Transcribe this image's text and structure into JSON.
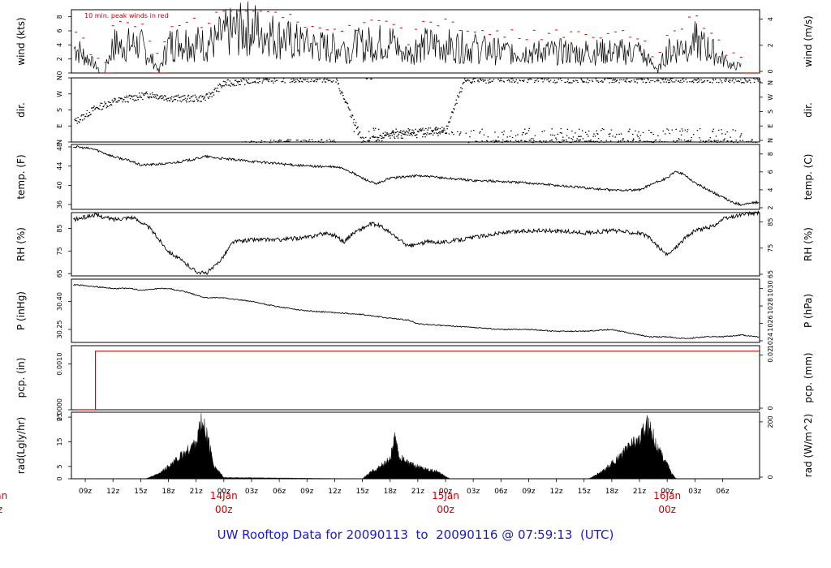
{
  "title_parts": [
    "UW Rooftop Data for 20090113",
    "to",
    "20090116 @ 07:59:13",
    "(UTC)"
  ],
  "legend_note": "10 min. peak winds in red",
  "colors": {
    "trace": "#000000",
    "peak": "#dd0000",
    "title": "#1a1ad6",
    "date_label": "#cc0000"
  },
  "x_ticks": [
    "09z",
    "12z",
    "15z",
    "18z",
    "21z",
    "00z",
    "03z",
    "06z",
    "09z",
    "12z",
    "15z",
    "18z",
    "21z",
    "00z",
    "03z",
    "06z",
    "09z",
    "12z",
    "15z",
    "18z",
    "21z",
    "00z",
    "03z",
    "06z"
  ],
  "date_labels": [
    {
      "line1": "Jan",
      "line2": "z"
    },
    {
      "line1": "14Jan",
      "line2": "00z"
    },
    {
      "line1": "15Jan",
      "line2": "00z"
    },
    {
      "line1": "16Jan",
      "line2": "00z"
    }
  ],
  "chart_data": [
    {
      "name": "wind",
      "type": "line",
      "ylabel_left": "wind (kts)",
      "ylabel_right": "wind (m/s)",
      "left_ticks": [
        "0",
        "2",
        "4",
        "6",
        "8"
      ],
      "right_ticks": [
        "0",
        "2",
        "4"
      ],
      "ylim": [
        0,
        9
      ],
      "series": [
        {
          "name": "10 min. peak winds in red",
          "style": "peak"
        }
      ],
      "approx_mean_kts": [
        [
          8,
          3.5
        ],
        [
          11,
          0
        ],
        [
          12,
          4
        ],
        [
          15,
          4
        ],
        [
          17,
          0.5
        ],
        [
          18,
          4
        ],
        [
          20,
          4.5
        ],
        [
          22,
          4
        ],
        [
          23,
          4.5
        ],
        [
          24,
          5.5
        ],
        [
          27,
          6.5
        ],
        [
          30,
          5
        ],
        [
          33,
          4
        ],
        [
          36,
          3.5
        ],
        [
          39,
          4
        ],
        [
          42,
          4.5
        ],
        [
          44,
          2.5
        ],
        [
          45,
          4
        ],
        [
          48,
          4
        ],
        [
          51,
          3.5
        ],
        [
          54,
          3
        ],
        [
          57,
          3
        ],
        [
          60,
          3
        ],
        [
          63,
          3
        ],
        [
          66,
          3
        ],
        [
          69,
          3
        ],
        [
          71,
          0.5
        ],
        [
          72,
          3
        ],
        [
          75,
          4.5
        ],
        [
          77,
          3
        ],
        [
          79,
          1
        ]
      ]
    },
    {
      "name": "dir",
      "type": "scatter",
      "ylabel_left": "dir.",
      "ylabel_right": "dir.",
      "left_ticks": [
        "N",
        "E",
        "S",
        "W",
        "N"
      ],
      "right_ticks": [
        "N",
        "E",
        "S",
        "W",
        "N"
      ],
      "ylim": [
        0,
        360
      ],
      "approx_direction_deg": [
        [
          8,
          120
        ],
        [
          10,
          190
        ],
        [
          12,
          230
        ],
        [
          14,
          250
        ],
        [
          16,
          270
        ],
        [
          18,
          250
        ],
        [
          20,
          245
        ],
        [
          22,
          250
        ],
        [
          24,
          330
        ],
        [
          27,
          350
        ],
        [
          30,
          355
        ],
        [
          33,
          358
        ],
        [
          36,
          358
        ],
        [
          39,
          5
        ],
        [
          42,
          40
        ],
        [
          45,
          60
        ],
        [
          48,
          70
        ],
        [
          50,
          350
        ],
        [
          54,
          355
        ],
        [
          60,
          355
        ],
        [
          66,
          355
        ],
        [
          72,
          355
        ],
        [
          76,
          355
        ],
        [
          79,
          355
        ]
      ]
    },
    {
      "name": "temp",
      "type": "line",
      "ylabel_left": "temp. (F)",
      "ylabel_right": "temp. (C)",
      "left_ticks": [
        "36",
        "40",
        "44",
        "48"
      ],
      "right_ticks": [
        "2",
        "4",
        "6",
        "8"
      ],
      "ylim": [
        35,
        48.5
      ],
      "values": [
        [
          8,
          48.0
        ],
        [
          10,
          47.5
        ],
        [
          12,
          46.0
        ],
        [
          14,
          45.0
        ],
        [
          15,
          44.2
        ],
        [
          18,
          44.5
        ],
        [
          21,
          45.5
        ],
        [
          22,
          46.0
        ],
        [
          24,
          45.5
        ],
        [
          27,
          45.0
        ],
        [
          30,
          44.5
        ],
        [
          33,
          44.0
        ],
        [
          36,
          43.8
        ],
        [
          37,
          43.5
        ],
        [
          39,
          41.5
        ],
        [
          40.5,
          40.2
        ],
        [
          42,
          41.5
        ],
        [
          45,
          42.0
        ],
        [
          48,
          41.5
        ],
        [
          51,
          41.0
        ],
        [
          54,
          40.8
        ],
        [
          57,
          40.5
        ],
        [
          60,
          40.0
        ],
        [
          63,
          39.5
        ],
        [
          66,
          39.0
        ],
        [
          69,
          39.0
        ],
        [
          70,
          40.0
        ],
        [
          72,
          41.5
        ],
        [
          73,
          43.0
        ],
        [
          74,
          42.0
        ],
        [
          75,
          40.5
        ],
        [
          77,
          38.5
        ],
        [
          78,
          37.5
        ],
        [
          79,
          36.5
        ],
        [
          80,
          36.0
        ],
        [
          82,
          36.5
        ]
      ]
    },
    {
      "name": "rh",
      "type": "line",
      "ylabel_left": "RH (%)",
      "ylabel_right": "RH (%)",
      "left_ticks": [
        "65",
        "75",
        "85"
      ],
      "right_ticks": [
        "65",
        "75",
        "85"
      ],
      "ylim": [
        64,
        92
      ],
      "values": [
        [
          8,
          89
        ],
        [
          10,
          91
        ],
        [
          12,
          89
        ],
        [
          14,
          90
        ],
        [
          15,
          88
        ],
        [
          16,
          85
        ],
        [
          17,
          80
        ],
        [
          18,
          75
        ],
        [
          19,
          72
        ],
        [
          20,
          69
        ],
        [
          21,
          66
        ],
        [
          22,
          65
        ],
        [
          23,
          68
        ],
        [
          24,
          73
        ],
        [
          25,
          79
        ],
        [
          27,
          80
        ],
        [
          30,
          80
        ],
        [
          33,
          81
        ],
        [
          35,
          83
        ],
        [
          36,
          82
        ],
        [
          37,
          79
        ],
        [
          38,
          83
        ],
        [
          39,
          85
        ],
        [
          40,
          87
        ],
        [
          41,
          86
        ],
        [
          42,
          83
        ],
        [
          43,
          80
        ],
        [
          44,
          77
        ],
        [
          46,
          79
        ],
        [
          48,
          79
        ],
        [
          51,
          81
        ],
        [
          54,
          83
        ],
        [
          57,
          84
        ],
        [
          60,
          84
        ],
        [
          63,
          83
        ],
        [
          66,
          84
        ],
        [
          69,
          83
        ],
        [
          70,
          81
        ],
        [
          71,
          77
        ],
        [
          72,
          73
        ],
        [
          73,
          77
        ],
        [
          74,
          81
        ],
        [
          75,
          84
        ],
        [
          77,
          86
        ],
        [
          78,
          89
        ],
        [
          79,
          90
        ],
        [
          80,
          91
        ],
        [
          82,
          92
        ]
      ]
    },
    {
      "name": "pressure",
      "type": "line",
      "ylabel_left": "P (inHg)",
      "ylabel_right": "P (hPa)",
      "left_ticks": [
        "30.25",
        "30.40"
      ],
      "right_ticks": [
        "1024",
        "1026",
        "1028",
        "1030"
      ],
      "ylim": [
        30.18,
        30.52
      ],
      "values": [
        [
          8,
          30.49
        ],
        [
          10,
          30.48
        ],
        [
          12,
          30.47
        ],
        [
          14,
          30.47
        ],
        [
          15,
          30.46
        ],
        [
          17,
          30.47
        ],
        [
          18,
          30.47
        ],
        [
          20,
          30.45
        ],
        [
          22,
          30.42
        ],
        [
          24,
          30.42
        ],
        [
          27,
          30.4
        ],
        [
          30,
          30.37
        ],
        [
          33,
          30.35
        ],
        [
          36,
          30.34
        ],
        [
          39,
          30.33
        ],
        [
          42,
          30.31
        ],
        [
          44,
          30.3
        ],
        [
          45,
          30.28
        ],
        [
          48,
          30.27
        ],
        [
          51,
          30.26
        ],
        [
          54,
          30.25
        ],
        [
          57,
          30.25
        ],
        [
          60,
          30.24
        ],
        [
          63,
          30.24
        ],
        [
          66,
          30.25
        ],
        [
          68,
          30.23
        ],
        [
          69,
          30.22
        ],
        [
          70,
          30.21
        ],
        [
          72,
          30.21
        ],
        [
          74,
          30.2
        ],
        [
          76,
          30.21
        ],
        [
          78,
          30.21
        ],
        [
          80,
          30.22
        ],
        [
          82,
          30.21
        ]
      ]
    },
    {
      "name": "precip",
      "type": "line",
      "ylabel_left": "pcp. (in)",
      "ylabel_right": "pcp. (mm)",
      "left_ticks": [
        "0.0000",
        "0.0010"
      ],
      "right_ticks": [
        "0",
        "0.02"
      ],
      "ylim": [
        0,
        0.0014
      ],
      "values": [
        [
          8,
          0
        ],
        [
          10.1,
          0
        ],
        [
          10.1,
          0.00128
        ],
        [
          82,
          0.00128
        ]
      ]
    },
    {
      "name": "radiation",
      "type": "area",
      "ylabel_left": "rad(Lgly/hr)",
      "ylabel_right": "rad (W/m^2)",
      "left_ticks": [
        "0",
        "5",
        "15",
        "25"
      ],
      "right_ticks": [
        "0",
        "200"
      ],
      "ylim": [
        0,
        27
      ],
      "values": [
        [
          15.5,
          0
        ],
        [
          17,
          2
        ],
        [
          18,
          5
        ],
        [
          19,
          8
        ],
        [
          20,
          11
        ],
        [
          21,
          15
        ],
        [
          21.5,
          22
        ],
        [
          22,
          20
        ],
        [
          22.5,
          12
        ],
        [
          23,
          5
        ],
        [
          24,
          0.5
        ],
        [
          39,
          0
        ],
        [
          40,
          3
        ],
        [
          41,
          5
        ],
        [
          42,
          8
        ],
        [
          42.5,
          16
        ],
        [
          43,
          9
        ],
        [
          44,
          6
        ],
        [
          45,
          5
        ],
        [
          46,
          4
        ],
        [
          47,
          3
        ],
        [
          48,
          1
        ],
        [
          48.5,
          0
        ],
        [
          63.5,
          0
        ],
        [
          65,
          3
        ],
        [
          66,
          6
        ],
        [
          67,
          9
        ],
        [
          68,
          14
        ],
        [
          69,
          16
        ],
        [
          70,
          22
        ],
        [
          70.5,
          18
        ],
        [
          71,
          12
        ],
        [
          72,
          6
        ],
        [
          72.5,
          2
        ],
        [
          73,
          0
        ]
      ]
    }
  ]
}
